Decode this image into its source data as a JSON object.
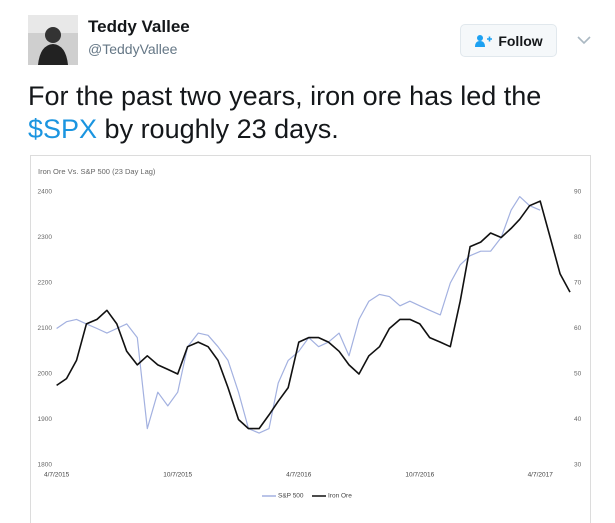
{
  "author": {
    "name": "Teddy Vallee",
    "handle": "@TeddyVallee"
  },
  "follow_button": "Follow",
  "tweet": {
    "text_before": "For the past two years, iron ore has led the ",
    "cashtag": "$SPX",
    "text_after": " by roughly 23 days."
  },
  "chart_data": {
    "type": "line",
    "title": "Iron Ore  Vs. S&P 500 (23 Day Lag)",
    "x": [
      "2015-04-07",
      "2015-04-22",
      "2015-05-07",
      "2015-05-22",
      "2015-06-07",
      "2015-06-22",
      "2015-07-07",
      "2015-07-22",
      "2015-08-07",
      "2015-08-22",
      "2015-09-07",
      "2015-09-22",
      "2015-10-07",
      "2015-10-22",
      "2015-11-07",
      "2015-11-22",
      "2015-12-07",
      "2015-12-22",
      "2016-01-07",
      "2016-01-22",
      "2016-02-07",
      "2016-02-22",
      "2016-03-07",
      "2016-03-22",
      "2016-04-07",
      "2016-04-22",
      "2016-05-07",
      "2016-05-22",
      "2016-06-07",
      "2016-06-22",
      "2016-07-07",
      "2016-07-22",
      "2016-08-07",
      "2016-08-22",
      "2016-09-07",
      "2016-09-22",
      "2016-10-07",
      "2016-10-22",
      "2016-11-07",
      "2016-11-22",
      "2016-12-07",
      "2016-12-22",
      "2017-01-07",
      "2017-01-22",
      "2017-02-07",
      "2017-02-22",
      "2017-03-07",
      "2017-03-22",
      "2017-04-07",
      "2017-04-22",
      "2017-05-07",
      "2017-05-22"
    ],
    "series": [
      {
        "name": "S&P 500",
        "color": "#a3b1e0",
        "values": [
          2100,
          2115,
          2120,
          2110,
          2100,
          2090,
          2100,
          2110,
          2080,
          1880,
          1960,
          1930,
          1960,
          2060,
          2090,
          2085,
          2060,
          2030,
          1960,
          1880,
          1870,
          1880,
          1980,
          2030,
          2050,
          2080,
          2060,
          2070,
          2090,
          2040,
          2120,
          2160,
          2175,
          2170,
          2150,
          2160,
          2150,
          2140,
          2130,
          2200,
          2240,
          2260,
          2270,
          2270,
          2300,
          2360,
          2390,
          2370,
          2360,
          null,
          null,
          null
        ]
      },
      {
        "name": "Iron Ore",
        "color": "#111111",
        "axis": "y2",
        "values": [
          47.5,
          49,
          53,
          61,
          62,
          64,
          61,
          55,
          52,
          54,
          52,
          51,
          50,
          56,
          57,
          56,
          53,
          47,
          40,
          38,
          38,
          41,
          44,
          47,
          57,
          58,
          58,
          57,
          55,
          52,
          50,
          54,
          56,
          60,
          62,
          62,
          61,
          58,
          57,
          56,
          66,
          78,
          79,
          81,
          80,
          82,
          84,
          87,
          88,
          80,
          72,
          68
        ]
      }
    ],
    "xlim": [
      "2015-03-28",
      "2017-05-22"
    ],
    "xticks": [
      {
        "value": "2015-04-07",
        "label": "4/7/2015"
      },
      {
        "value": "2015-10-07",
        "label": "10/7/2015"
      },
      {
        "value": "2016-04-07",
        "label": "4/7/2016"
      },
      {
        "value": "2016-10-07",
        "label": "10/7/2016"
      },
      {
        "value": "2017-04-07",
        "label": "4/7/2017"
      }
    ],
    "ylim": [
      1800,
      2400
    ],
    "yticks": [
      1800,
      1900,
      2000,
      2100,
      2200,
      2300,
      2400
    ],
    "y2lim": [
      30,
      90
    ],
    "y2ticks": [
      30,
      40,
      50,
      60,
      70,
      80,
      90
    ],
    "legend": "bottom"
  }
}
